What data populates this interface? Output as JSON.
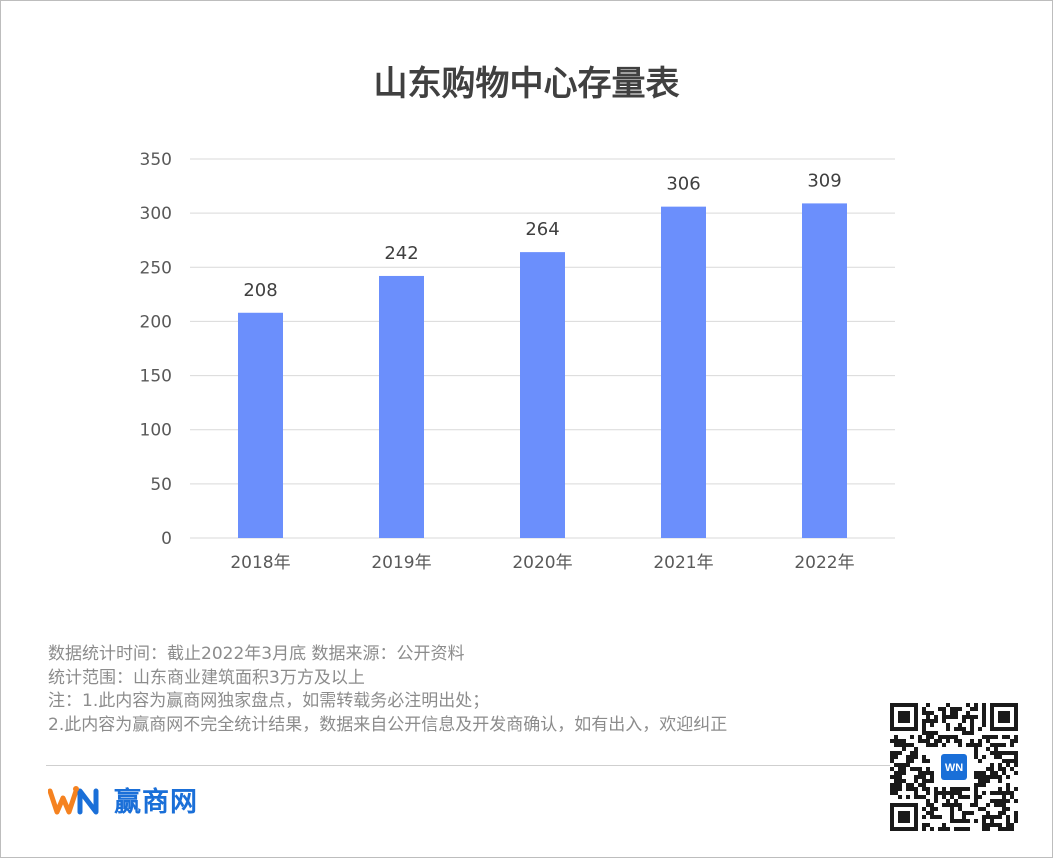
{
  "colors": {
    "bar": "#6b8ffc",
    "grid": "#d9d9d9",
    "axis_text": "#595959",
    "label_text": "#404040",
    "brand": "#1a6fd8",
    "logo_accent": "#f58220"
  },
  "chart_data": {
    "type": "bar",
    "title": "山东购物中心存量表",
    "categories": [
      "2018年",
      "2019年",
      "2020年",
      "2021年",
      "2022年"
    ],
    "values": [
      208,
      242,
      264,
      306,
      309
    ],
    "ylim": [
      0,
      350
    ],
    "yticks": [
      0,
      50,
      100,
      150,
      200,
      250,
      300,
      350
    ],
    "grid": true,
    "legend": "none"
  },
  "notes": [
    "数据统计时间：截止2022年3月底 数据来源：公开资料",
    "统计范围：山东商业建筑面积3万方及以上",
    "注：1.此内容为赢商网独家盘点，如需转载务必注明出处；",
    "2.此内容为赢商网不完全统计结果，数据来自公开信息及开发商确认，如有出入，欢迎纠正"
  ],
  "logo": {
    "text": "赢商网"
  },
  "qr": {
    "icon": "qr-code-icon"
  }
}
